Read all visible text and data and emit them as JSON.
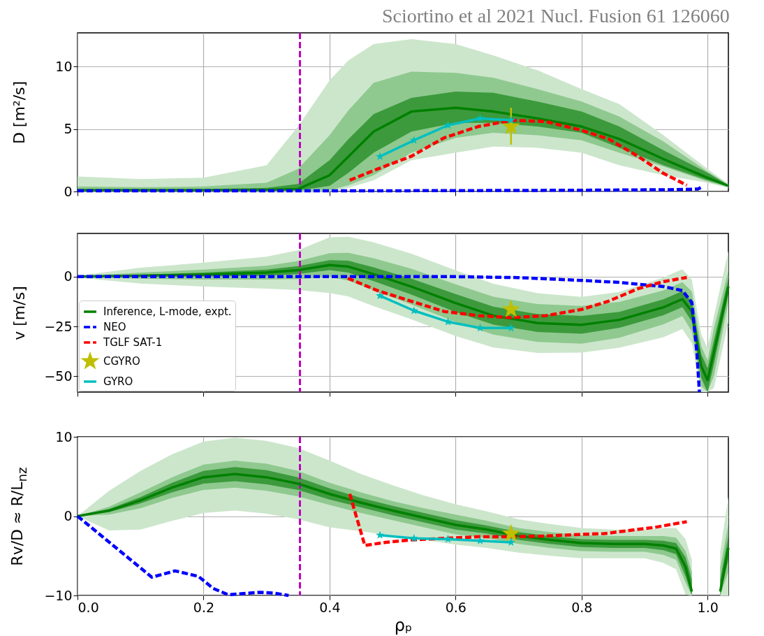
{
  "chart_data": [
    {
      "type": "line",
      "annotations": [
        "Sciortino et al 2021 Nucl. Fusion 61 126060"
      ],
      "ylabel": "D [m²/s]",
      "xlim": [
        0,
        1.033
      ],
      "ylim": [
        0,
        12.7
      ],
      "xticks": [
        0,
        0.2,
        0.4,
        0.6,
        0.8,
        1
      ],
      "yticks": [
        0,
        5,
        10
      ],
      "grid": true,
      "tick_labels": "y",
      "legend": false,
      "ref_lines": [
        {
          "axis": "x",
          "value": 0.353,
          "color": "#bf00bf",
          "line_style": "dashed"
        }
      ],
      "series": [
        {
          "color": "#cce6cc",
          "x": [
            0,
            0.1,
            0.2,
            0.3,
            0.35,
            0.4,
            0.43,
            0.47,
            0.53,
            0.6,
            0.66,
            0.73,
            0.8,
            0.86,
            0.93,
            1.0,
            1.033
          ],
          "values": [
            null,
            null,
            null,
            null,
            null,
            null,
            null,
            null,
            null,
            null,
            null,
            null,
            null,
            null,
            null,
            null,
            null
          ],
          "lower": [
            0,
            0,
            0,
            0,
            0,
            0.02,
            0.3,
            0.9,
            2.5,
            3.1,
            3.6,
            3.5,
            3.1,
            2.1,
            1.3,
            0.7,
            0.3
          ],
          "upper": [
            1.2,
            1.0,
            1.1,
            2.1,
            5.2,
            8.9,
            10.5,
            11.8,
            12.2,
            11.8,
            10.9,
            9.7,
            8.2,
            7.0,
            4.5,
            1.8,
            0.6
          ]
        },
        {
          "color": "#8fc98f",
          "x": [
            0,
            0.1,
            0.2,
            0.3,
            0.35,
            0.4,
            0.43,
            0.47,
            0.53,
            0.6,
            0.66,
            0.73,
            0.8,
            0.86,
            0.93,
            1.0,
            1.033
          ],
          "values": [
            null,
            null,
            null,
            null,
            null,
            null,
            null,
            null,
            null,
            null,
            null,
            null,
            null,
            null,
            null,
            null,
            null
          ],
          "lower": [
            0,
            0,
            0,
            0,
            0.02,
            0.1,
            0.5,
            1.3,
            3.1,
            4.3,
            4.7,
            4.5,
            4.1,
            3.1,
            2.0,
            0.8,
            0.35
          ],
          "upper": [
            0.4,
            0.35,
            0.4,
            0.7,
            1.8,
            4.5,
            6.5,
            8.7,
            9.6,
            9.5,
            9.1,
            8.2,
            7.2,
            6.0,
            4.0,
            1.6,
            0.55
          ]
        },
        {
          "color": "#3c9a3c",
          "x": [
            0,
            0.1,
            0.2,
            0.3,
            0.35,
            0.4,
            0.43,
            0.47,
            0.53,
            0.6,
            0.66,
            0.73,
            0.8,
            0.86,
            0.93,
            1.0,
            1.033
          ],
          "values": [
            null,
            null,
            null,
            null,
            null,
            null,
            null,
            null,
            null,
            null,
            null,
            null,
            null,
            null,
            null,
            null,
            null
          ],
          "lower": [
            0.05,
            0.05,
            0.05,
            0.06,
            0.08,
            0.45,
            1.5,
            3.1,
            4.8,
            5.5,
            5.5,
            5.2,
            4.7,
            3.5,
            2.1,
            0.9,
            0.4
          ],
          "upper": [
            0.2,
            0.2,
            0.2,
            0.3,
            0.6,
            2.5,
            4.2,
            6.2,
            7.5,
            8.0,
            7.9,
            7.2,
            6.4,
            5.2,
            3.3,
            1.5,
            0.5
          ]
        },
        {
          "color": "#008000",
          "x": [
            0,
            0.1,
            0.2,
            0.3,
            0.35,
            0.4,
            0.43,
            0.47,
            0.53,
            0.6,
            0.66,
            0.73,
            0.8,
            0.86,
            0.93,
            1.0,
            1.033
          ],
          "values": [
            0.1,
            0.1,
            0.1,
            0.12,
            0.2,
            1.3,
            2.8,
            4.8,
            6.4,
            6.7,
            6.4,
            5.85,
            5.2,
            4.2,
            2.6,
            1.1,
            0.45
          ]
        },
        {
          "color": "#0000ff",
          "line_style": "dashed",
          "x": [
            0,
            0.2,
            0.4,
            0.6,
            0.8,
            0.95,
            0.985,
            0.99
          ],
          "values": [
            0.05,
            0.05,
            0.05,
            0.07,
            0.1,
            0.15,
            0.2,
            0.35
          ]
        },
        {
          "color": "#ff0000",
          "line_style": "dashed",
          "x": [
            0.432,
            0.476,
            0.529,
            0.582,
            0.636,
            0.69,
            0.743,
            0.8,
            0.843,
            0.89,
            0.93,
            0.967
          ],
          "values": [
            0.9,
            1.8,
            2.8,
            4.3,
            5.2,
            5.7,
            5.6,
            4.9,
            4.2,
            2.8,
            1.45,
            0.5
          ]
        },
        {
          "type": "scatter",
          "color": "#bfbf00",
          "marker": "star",
          "x": [
            0.688
          ],
          "values": [
            5.2
          ],
          "errors": [
            [
              3.75,
              6.7
            ]
          ]
        },
        {
          "color": "#00bfbf",
          "marker": "star",
          "x": [
            0.48,
            0.534,
            0.588,
            0.639,
            0.688
          ],
          "values": [
            2.8,
            4.1,
            5.3,
            5.85,
            5.7
          ]
        }
      ]
    },
    {
      "type": "line",
      "ylabel": "v [m/s]",
      "xlim": [
        0,
        1.033
      ],
      "ylim": [
        -58,
        21.7
      ],
      "xticks": [
        0,
        0.2,
        0.4,
        0.6,
        0.8,
        1
      ],
      "yticks": [
        0,
        {
          "value": -25,
          "label": "−25"
        },
        {
          "value": -50,
          "label": "−50"
        }
      ],
      "grid": true,
      "tick_labels": "y",
      "legend": "bottom left",
      "ref_lines": [
        {
          "axis": "x",
          "value": 0.353,
          "color": "#bf00bf",
          "line_style": "dashed"
        }
      ],
      "series": [
        {
          "color": "#cce6cc",
          "x": [
            0,
            0.1,
            0.2,
            0.3,
            0.35,
            0.4,
            0.43,
            0.47,
            0.53,
            0.6,
            0.66,
            0.73,
            0.8,
            0.86,
            0.93,
            0.96,
            0.975,
            0.99,
            1.0,
            1.01,
            1.033
          ],
          "values": [
            null,
            null,
            null,
            null,
            null,
            null,
            null,
            null,
            null,
            null,
            null,
            null,
            null,
            null,
            null,
            null,
            null,
            null,
            null,
            null,
            null
          ],
          "lower": [
            -0.5,
            -3.5,
            -5,
            -6,
            -6.7,
            -8.2,
            -10,
            -14.8,
            -21.5,
            -29.8,
            -35.6,
            -38.3,
            -38.2,
            -35.7,
            -30.4,
            -26.3,
            -33.5,
            -58,
            -58,
            -56,
            -23
          ],
          "upper": [
            0.5,
            4.5,
            7,
            10,
            13.3,
            19.8,
            20,
            17.2,
            11.5,
            3.2,
            -3.6,
            -8.3,
            -10.2,
            -7.7,
            -0.4,
            3.7,
            -1.5,
            -29,
            -36,
            -20,
            13
          ]
        },
        {
          "color": "#8fc98f",
          "x": [
            0,
            0.1,
            0.2,
            0.3,
            0.35,
            0.4,
            0.43,
            0.47,
            0.53,
            0.6,
            0.66,
            0.73,
            0.8,
            0.86,
            0.93,
            0.96,
            0.975,
            0.99,
            1.0,
            1.01,
            1.033
          ],
          "values": [
            null,
            null,
            null,
            null,
            null,
            null,
            null,
            null,
            null,
            null,
            null,
            null,
            null,
            null,
            null,
            null,
            null,
            null,
            null,
            null,
            null
          ],
          "lower": [
            -0.2,
            -1,
            -1.5,
            -1.5,
            -1.2,
            -0.2,
            -2,
            -6.8,
            -14,
            -22.8,
            -29.1,
            -32.8,
            -33.7,
            -30.7,
            -23.9,
            -19.8,
            -27.5,
            -55,
            -58,
            -50,
            -13
          ],
          "upper": [
            0.2,
            2,
            3.5,
            5.5,
            7.8,
            11.8,
            12,
            9.2,
            4,
            -3.8,
            -10.1,
            -13.8,
            -14.7,
            -12.7,
            -6.9,
            -2.8,
            -7.5,
            -35,
            -42,
            -26,
            3
          ]
        },
        {
          "color": "#3c9a3c",
          "x": [
            0,
            0.1,
            0.2,
            0.3,
            0.35,
            0.4,
            0.43,
            0.47,
            0.53,
            0.6,
            0.66,
            0.73,
            0.8,
            0.86,
            0.93,
            0.96,
            0.975,
            0.99,
            1.0,
            1.01,
            1.033
          ],
          "values": [
            null,
            null,
            null,
            null,
            null,
            null,
            null,
            null,
            null,
            null,
            null,
            null,
            null,
            null,
            null,
            null,
            null,
            null,
            null,
            null,
            null
          ],
          "lower": [
            0,
            0,
            0,
            0.5,
            1.3,
            3.3,
            2,
            -2.3,
            -9,
            -17.8,
            -24.1,
            -27.8,
            -28.7,
            -25.7,
            -19.4,
            -15.3,
            -22.5,
            -51,
            -58,
            -44,
            -9
          ],
          "upper": [
            0,
            1,
            2,
            3.5,
            5.3,
            8.3,
            8,
            4.7,
            -1,
            -8.8,
            -15.1,
            -18.8,
            -19.7,
            -17.7,
            -11.4,
            -7.3,
            -12.5,
            -39,
            -46,
            -32,
            -1
          ]
        },
        {
          "name": "Inference, L-mode, expt.",
          "color": "#008000",
          "x": [
            0,
            0.1,
            0.2,
            0.3,
            0.35,
            0.4,
            0.43,
            0.47,
            0.53,
            0.6,
            0.66,
            0.73,
            0.8,
            0.86,
            0.93,
            0.96,
            0.975,
            0.99,
            1.0,
            1.01,
            1.033
          ],
          "values": [
            0,
            0.5,
            1,
            2,
            3.3,
            5.8,
            5,
            1.2,
            -5,
            -13.3,
            -19.6,
            -23.3,
            -24.2,
            -21.7,
            -15.4,
            -11.3,
            -17.5,
            -45,
            -52,
            -38,
            -5
          ]
        },
        {
          "name": "NEO",
          "color": "#0000ff",
          "line_style": "dashed",
          "x": [
            0,
            0.4,
            0.6,
            0.7,
            0.8,
            0.86,
            0.93,
            0.96,
            0.975,
            0.983,
            0.987
          ],
          "values": [
            0,
            0,
            0,
            -0.5,
            -1.9,
            -2.9,
            -5,
            -7,
            -13,
            -38,
            -58
          ]
        },
        {
          "name": "TGLF SAT-1",
          "color": "#ff0000",
          "line_style": "dashed",
          "x": [
            0.429,
            0.476,
            0.529,
            0.582,
            0.636,
            0.69,
            0.743,
            0.8,
            0.843,
            0.89,
            0.93,
            0.967
          ],
          "values": [
            -0.8,
            -7,
            -12.3,
            -17.5,
            -19.6,
            -20.6,
            -19.6,
            -16.5,
            -12.3,
            -6,
            -2.5,
            -0.4
          ]
        },
        {
          "name": "CGYRO",
          "type": "scatter",
          "color": "#bfbf00",
          "marker": "star",
          "x": [
            0.688
          ],
          "values": [
            -16.5
          ]
        },
        {
          "name": "GYRO",
          "color": "#00bfbf",
          "marker": "star",
          "x": [
            0.48,
            0.534,
            0.588,
            0.639,
            0.688
          ],
          "values": [
            -9.6,
            -17.1,
            -22.7,
            -25.8,
            -25.8
          ]
        }
      ]
    },
    {
      "type": "line",
      "xlabel": "ρₚ",
      "ylabel": "Rv/D ≈ R/L$_{nz}$",
      "xlim": [
        0,
        1.033
      ],
      "ylim": [
        -10,
        10
      ],
      "xticks": [
        {
          "value": 0,
          "label": "0.0"
        },
        {
          "value": 0.2,
          "label": "0.2"
        },
        {
          "value": 0.4,
          "label": "0.4"
        },
        {
          "value": 0.6,
          "label": "0.6"
        },
        {
          "value": 0.8,
          "label": "0.8"
        },
        {
          "value": 1,
          "label": "1.0"
        }
      ],
      "yticks": [
        {
          "value": -10,
          "label": "−10"
        },
        0,
        10
      ],
      "grid": true,
      "legend": false,
      "ref_lines": [
        {
          "axis": "x",
          "value": 0.353,
          "color": "#bf00bf",
          "line_style": "dashed"
        }
      ],
      "series": [
        {
          "color": "#cce6cc",
          "x": [
            0,
            0.05,
            0.1,
            0.15,
            0.2,
            0.25,
            0.3,
            0.35,
            0.4,
            0.45,
            0.5,
            0.55,
            0.6,
            0.65,
            0.7,
            0.75,
            0.8,
            0.85,
            0.9,
            0.93,
            0.95,
            0.965,
            0.975,
            1.0,
            1.02,
            1.033
          ],
          "values": [
            null,
            null,
            null,
            null,
            null,
            null,
            null,
            null,
            null,
            null,
            null,
            null,
            null,
            null,
            null,
            null,
            null,
            null,
            null,
            null,
            null,
            null,
            null,
            null,
            null,
            null
          ],
          "lower": [
            0,
            -1.8,
            -1.7,
            -0.6,
            0.4,
            0.7,
            0.3,
            -0.4,
            -1.4,
            -1.9,
            -2.5,
            -3,
            -3.6,
            -4,
            -4.6,
            -5,
            -5.3,
            -5.3,
            -5.3,
            -5.9,
            -6.7,
            -9.9,
            -10,
            null,
            -10,
            -10
          ],
          "upper": [
            0,
            3.2,
            5.7,
            7.8,
            9.4,
            9.9,
            9.5,
            8.6,
            7,
            5.3,
            3.9,
            2.6,
            1.5,
            0.6,
            -0.4,
            -1,
            -1.5,
            -1.7,
            -1.7,
            -1.5,
            -1.5,
            -2.9,
            -5.5,
            null,
            -4.5,
            2.5
          ]
        },
        {
          "color": "#8fc98f",
          "x": [
            0,
            0.05,
            0.1,
            0.15,
            0.2,
            0.25,
            0.3,
            0.35,
            0.4,
            0.45,
            0.5,
            0.55,
            0.6,
            0.65,
            0.7,
            0.75,
            0.8,
            0.85,
            0.9,
            0.93,
            0.95,
            0.965,
            0.975,
            1.0,
            1.02,
            1.033
          ],
          "values": [
            null,
            null,
            null,
            null,
            null,
            null,
            null,
            null,
            null,
            null,
            null,
            null,
            null,
            null,
            null,
            null,
            null,
            null,
            null,
            null,
            null,
            null,
            null,
            null,
            null,
            null
          ],
          "lower": [
            0,
            0.2,
            1,
            2.3,
            3.3,
            3.6,
            3.2,
            2.5,
            1.4,
            0.4,
            -0.5,
            -1.4,
            -2.3,
            -2.8,
            -3.5,
            -4,
            -4.4,
            -4.5,
            -4.5,
            -4.9,
            -5.5,
            -8.4,
            -10,
            null,
            -10,
            -7
          ],
          "upper": [
            0,
            1.2,
            3,
            4.9,
            6.5,
            7,
            6.6,
            5.7,
            4.2,
            3,
            1.9,
            1,
            0.2,
            -0.6,
            -1.5,
            -2,
            -2.4,
            -2.5,
            -2.5,
            -2.5,
            -2.7,
            -4.4,
            -7,
            null,
            -6.5,
            -1
          ]
        },
        {
          "color": "#3c9a3c",
          "x": [
            0,
            0.05,
            0.1,
            0.15,
            0.2,
            0.25,
            0.3,
            0.35,
            0.4,
            0.45,
            0.5,
            0.55,
            0.6,
            0.65,
            0.7,
            0.75,
            0.8,
            0.85,
            0.9,
            0.93,
            0.95,
            0.965,
            0.975,
            1.0,
            1.02,
            1.033
          ],
          "values": [
            null,
            null,
            null,
            null,
            null,
            null,
            null,
            null,
            null,
            null,
            null,
            null,
            null,
            null,
            null,
            null,
            null,
            null,
            null,
            null,
            null,
            null,
            null,
            null,
            null,
            null
          ],
          "lower": [
            0,
            0.5,
            1.6,
            3.0,
            4.1,
            4.4,
            4.0,
            3.3,
            2.1,
            1.1,
            0.1,
            -0.8,
            -1.7,
            -2.2,
            -3,
            -3.5,
            -3.9,
            -4,
            -4,
            -4.3,
            -4.8,
            -7.6,
            -10,
            null,
            -10,
            -5.5
          ],
          "upper": [
            0,
            0.9,
            2.4,
            4.2,
            5.7,
            6.2,
            5.8,
            4.9,
            3.5,
            2.3,
            1.3,
            0.4,
            -0.5,
            -1.2,
            -2,
            -2.5,
            -2.9,
            -3,
            -3,
            -3.1,
            -3.4,
            -5.2,
            -8,
            null,
            -8,
            -2.5
          ]
        },
        {
          "color": "#008000",
          "x": [
            0,
            0.05,
            0.1,
            0.15,
            0.2,
            0.25,
            0.3,
            0.35,
            0.4,
            0.45,
            0.5,
            0.55,
            0.6,
            0.65,
            0.7,
            0.75,
            0.8,
            0.85,
            0.9,
            0.93,
            0.95,
            0.965,
            0.975,
            1.0,
            1.02,
            1.033
          ],
          "values": [
            0,
            0.7,
            2,
            3.6,
            4.9,
            5.3,
            4.9,
            4.1,
            2.8,
            1.7,
            0.7,
            -0.2,
            -1.1,
            -1.7,
            -2.5,
            -3,
            -3.4,
            -3.5,
            -3.5,
            -3.7,
            -4.1,
            -6.4,
            -9.5,
            null,
            -9.5,
            -4
          ]
        },
        {
          "color": "#0000ff",
          "line_style": "dashed",
          "x": [
            0,
            0.118,
            0.155,
            0.192,
            0.215,
            0.239,
            0.289,
            0.312,
            0.335
          ],
          "values": [
            0,
            -7.7,
            -6.9,
            -7.6,
            -9.1,
            -9.9,
            -9.6,
            -9.7,
            -10
          ]
        },
        {
          "color": "#ff0000",
          "line_style": "dashed",
          "x": [
            0.432,
            0.456,
            0.489,
            0.529,
            0.582,
            0.636,
            0.69,
            0.743,
            0.8,
            0.836,
            0.876,
            0.917,
            0.967
          ],
          "values": [
            2.8,
            -3.7,
            -3.3,
            -3,
            -2.8,
            -2.6,
            -2.6,
            -2.5,
            -2.3,
            -2.2,
            -1.8,
            -1.4,
            -0.7
          ]
        },
        {
          "type": "scatter",
          "color": "#bfbf00",
          "marker": "star",
          "x": [
            0.688
          ],
          "values": [
            -2.2
          ]
        },
        {
          "color": "#00bfbf",
          "marker": "star",
          "x": [
            0.48,
            0.534,
            0.588,
            0.639,
            0.688
          ],
          "values": [
            -2.4,
            -2.8,
            -2.9,
            -3.1,
            -3.3
          ]
        }
      ]
    }
  ]
}
